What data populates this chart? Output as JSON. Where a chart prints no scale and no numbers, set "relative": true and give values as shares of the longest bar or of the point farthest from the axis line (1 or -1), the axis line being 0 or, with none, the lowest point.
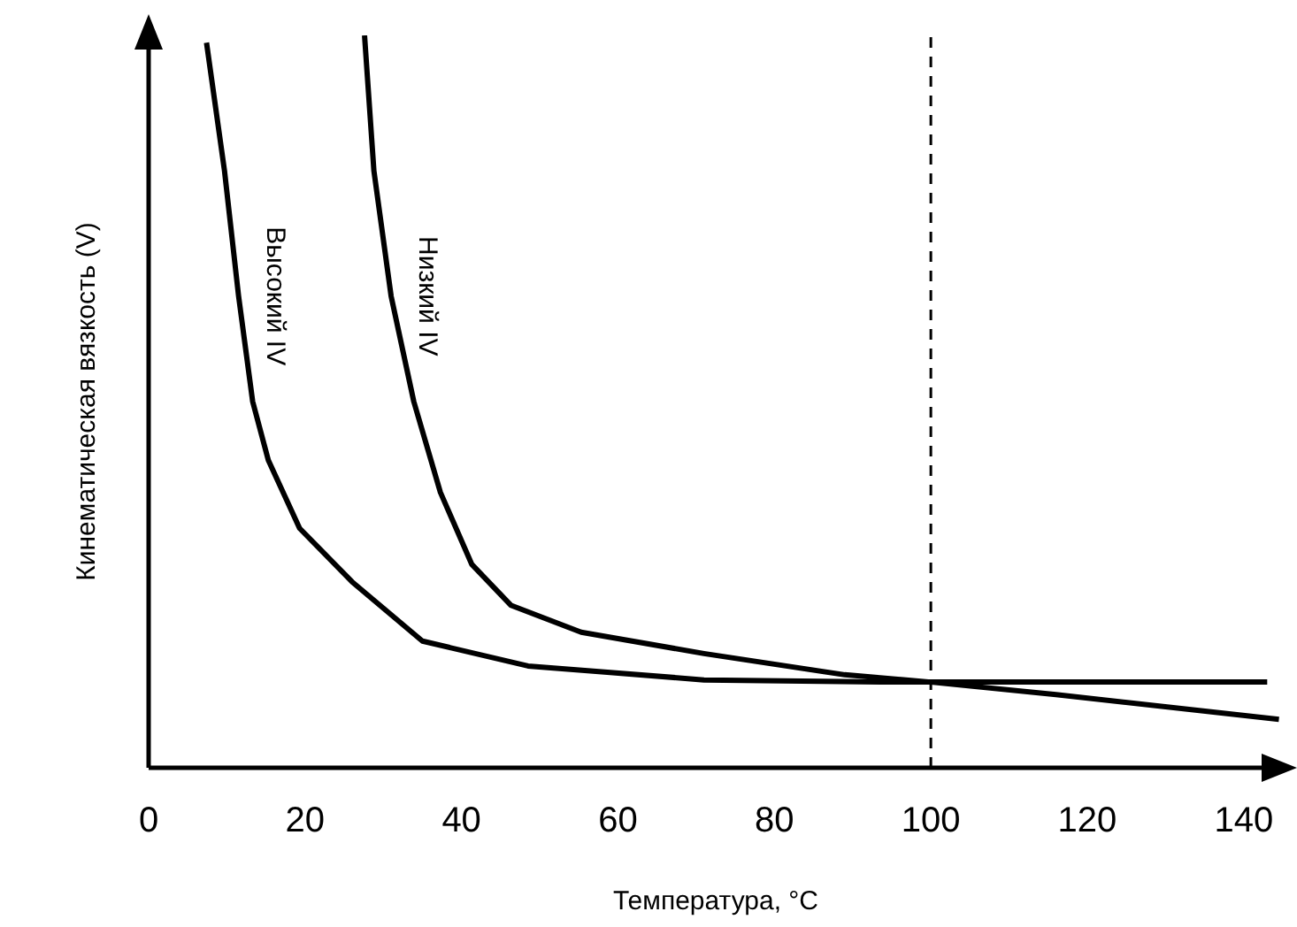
{
  "chart_data": {
    "type": "line",
    "relative": true,
    "xlabel": "Температура, °C",
    "ylabel": "Кинематическая вязкость (V)",
    "xlim": [
      0,
      145
    ],
    "xticks": [
      0,
      20,
      40,
      60,
      80,
      100,
      120,
      140
    ],
    "marker": "none",
    "line_style": "solid",
    "series": [
      {
        "name": "Высокий IV",
        "color": "#000000",
        "x": [
          7.4,
          9.7,
          11.5,
          13.3,
          15.3,
          19.3,
          26,
          35,
          48.5,
          71,
          93.5,
          143
        ],
        "values": [
          0.99,
          0.815,
          0.644,
          0.5,
          0.42,
          0.327,
          0.254,
          0.173,
          0.139,
          0.12,
          0.117,
          0.117
        ]
      },
      {
        "name": "Низкий IV",
        "color": "#000000",
        "x": [
          27.6,
          28.8,
          31,
          33.9,
          37.3,
          41.3,
          46.3,
          55.3,
          71,
          89,
          100,
          116,
          144.5
        ],
        "values": [
          1.0,
          0.815,
          0.644,
          0.5,
          0.376,
          0.278,
          0.222,
          0.185,
          0.156,
          0.127,
          0.117,
          0.1,
          0.066
        ]
      }
    ],
    "ref_lines": [
      {
        "axis": "x",
        "value": 100,
        "line_style": "dashed",
        "color": "#000000"
      }
    ]
  }
}
